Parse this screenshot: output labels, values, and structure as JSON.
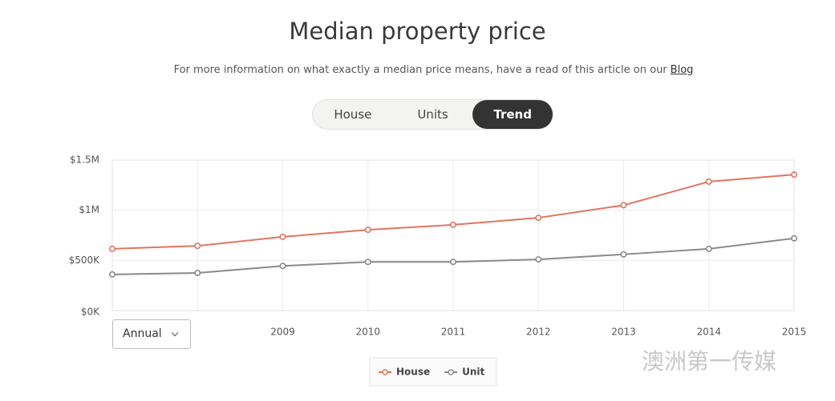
{
  "header": {
    "title": "Median property price",
    "subtitle": "For more information on what exactly a median price means, have a read of this article on our",
    "link": "Blog"
  },
  "tabs": {
    "items": [
      "House",
      "Units",
      "Trend"
    ],
    "active": 2
  },
  "dropdown": "Annual",
  "watermark": "澳洲第一传媒",
  "chart_data": {
    "type": "line",
    "categories": [
      null,
      null,
      "2009",
      "2010",
      "2011",
      "2012",
      "2013",
      "2014",
      "2015"
    ],
    "series": [
      {
        "name": "House",
        "color": "#e07560",
        "values": [
          615000,
          645000,
          735000,
          805000,
          855000,
          925000,
          1050000,
          1285000,
          1355000
        ]
      },
      {
        "name": "Unit",
        "color": "#8a8a8e",
        "values": [
          360000,
          375000,
          445000,
          485000,
          485000,
          510000,
          560000,
          615000,
          720000
        ]
      }
    ],
    "ylim": [
      0,
      1500000
    ],
    "yticks": [
      {
        "value": 0,
        "label": "$0K"
      },
      {
        "value": 500000,
        "label": "$500K"
      },
      {
        "value": 1000000,
        "label": "$1M"
      },
      {
        "value": 1500000,
        "label": "$1.5M"
      }
    ],
    "grid": true
  }
}
